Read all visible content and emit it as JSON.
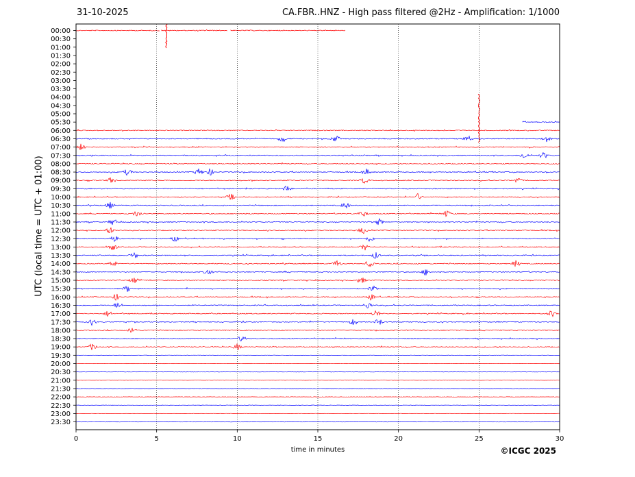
{
  "header": {
    "date": "31-10-2025",
    "title": "CA.FBR..HNZ - High pass filtered @2Hz - Amplification: 1/1000"
  },
  "footer": {
    "copyright": "©ICGC 2025"
  },
  "colors": {
    "trace_a": "#ff0000",
    "trace_b": "#0000ff",
    "gridline": "#000000",
    "axis": "#000000"
  },
  "chart_data": {
    "type": "line",
    "title": "CA.FBR..HNZ - High pass filtered @2Hz - Amplification: 1/1000",
    "xlabel": "time in minutes",
    "ylabel": "UTC (local time = UTC + 01:00)",
    "xlim": [
      0,
      30
    ],
    "x_ticks": [
      0,
      5,
      10,
      15,
      20,
      25,
      30
    ],
    "x_grid": "dotted vertical lines at each 5-minute tick",
    "row_labels": [
      "00:00",
      "00:30",
      "01:00",
      "01:30",
      "02:00",
      "02:30",
      "03:00",
      "03:30",
      "04:00",
      "04:30",
      "05:00",
      "05:30",
      "06:00",
      "06:30",
      "07:00",
      "07:30",
      "08:00",
      "08:30",
      "09:00",
      "09:30",
      "10:00",
      "10:30",
      "11:00",
      "11:30",
      "12:00",
      "12:30",
      "13:00",
      "13:30",
      "14:00",
      "14:30",
      "15:00",
      "15:30",
      "16:00",
      "16:30",
      "17:00",
      "17:30",
      "18:00",
      "18:30",
      "19:00",
      "19:30",
      "20:00",
      "20:30",
      "21:00",
      "21:30",
      "22:00",
      "22:30",
      "23:00",
      "23:30"
    ],
    "row_colors": "alternating red / blue by row",
    "data_segments": [
      {
        "row": "00:00",
        "ranges": [
          [
            0,
            5.2
          ],
          [
            5.3,
            9.4
          ],
          [
            9.6,
            16.7
          ]
        ]
      },
      {
        "row": "05:30",
        "ranges": [
          [
            27.7,
            30
          ]
        ]
      }
    ],
    "first_full_row": "06:00",
    "last_row": "23:30",
    "spikes": [
      {
        "row": "00:00",
        "x": 5.6,
        "amplitude": "large"
      },
      {
        "row": "04:00",
        "x": 25.0,
        "amplitude": "very large, extends down to 06:30 row"
      }
    ],
    "events": [
      {
        "row": "06:30",
        "x": [
          12.8,
          16.1,
          24.3,
          29.2
        ]
      },
      {
        "row": "07:00",
        "x": [
          0.3
        ]
      },
      {
        "row": "07:30",
        "x": [
          27.8,
          29.0
        ]
      },
      {
        "row": "08:30",
        "x": [
          3.2,
          7.6,
          8.3,
          18.0
        ]
      },
      {
        "row": "09:00",
        "x": [
          2.2,
          17.9,
          27.4
        ]
      },
      {
        "row": "09:30",
        "x": [
          13.1
        ]
      },
      {
        "row": "10:00",
        "x": [
          9.6,
          21.2
        ]
      },
      {
        "row": "10:30",
        "x": [
          2.1,
          16.7
        ]
      },
      {
        "row": "11:00",
        "x": [
          3.8,
          17.8,
          23.0
        ]
      },
      {
        "row": "11:30",
        "x": [
          2.3,
          18.8
        ]
      },
      {
        "row": "12:00",
        "x": [
          2.1,
          17.8
        ]
      },
      {
        "row": "12:30",
        "x": [
          2.4,
          6.1,
          18.2
        ]
      },
      {
        "row": "13:00",
        "x": [
          2.3,
          17.9
        ]
      },
      {
        "row": "13:30",
        "x": [
          3.6,
          18.6
        ]
      },
      {
        "row": "14:00",
        "x": [
          2.3,
          16.2,
          18.2,
          27.3
        ]
      },
      {
        "row": "14:30",
        "x": [
          8.2,
          21.7
        ]
      },
      {
        "row": "15:00",
        "x": [
          3.6,
          17.7
        ]
      },
      {
        "row": "15:30",
        "x": [
          3.2,
          18.4
        ]
      },
      {
        "row": "16:00",
        "x": [
          2.5,
          18.3
        ]
      },
      {
        "row": "16:30",
        "x": [
          2.6,
          18.1
        ]
      },
      {
        "row": "17:00",
        "x": [
          2.0,
          18.6,
          29.5
        ]
      },
      {
        "row": "17:30",
        "x": [
          1.0,
          17.2,
          18.8
        ]
      },
      {
        "row": "18:00",
        "x": [
          3.5
        ]
      },
      {
        "row": "18:30",
        "x": [
          10.3
        ]
      },
      {
        "row": "19:00",
        "x": [
          1.0,
          10.0
        ]
      }
    ]
  }
}
